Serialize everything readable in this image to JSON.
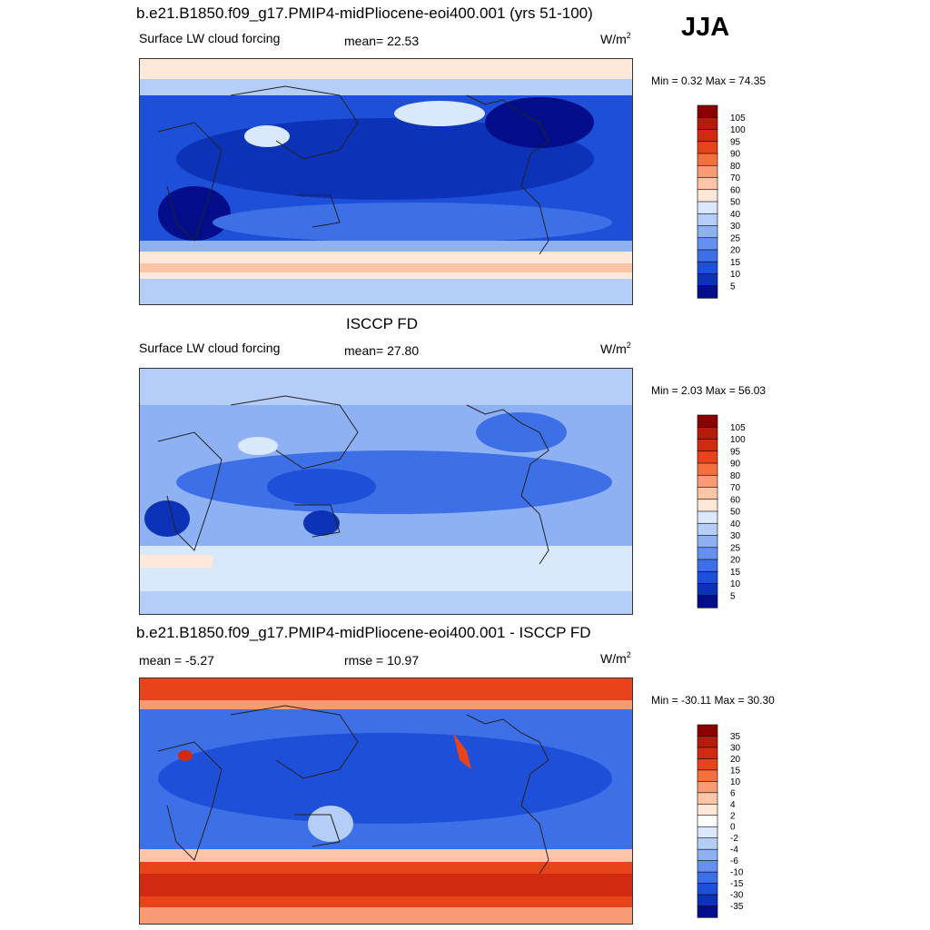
{
  "season": "JJA",
  "panels": [
    {
      "title": "b.e21.B1850.f09_g17.PMIP4-midPliocene-eoi400.001 (yrs 51-100)",
      "left_label": "Surface LW cloud forcing",
      "mid_label": "mean=  22.53",
      "units_base": "W/m",
      "units_exp": "2",
      "minmax": "Min =   0.32 Max =  74.35",
      "colorbar_levels": [
        "105",
        "100",
        "95",
        "90",
        "80",
        "70",
        "60",
        "50",
        "40",
        "30",
        "25",
        "20",
        "15",
        "10",
        "5"
      ],
      "colorbar_colors": [
        "#8b0000",
        "#b31b0b",
        "#d02a10",
        "#e8441c",
        "#f4703e",
        "#f89a73",
        "#fbc5a8",
        "#fde8da",
        "#d9e8fb",
        "#b5cef8",
        "#8eb1f4",
        "#6590ee",
        "#3d6fe6",
        "#1e4fd8",
        "#0c33b7",
        "#040d8a"
      ]
    },
    {
      "title": "ISCCP FD",
      "left_label": "Surface LW cloud forcing",
      "mid_label": "mean=  27.80",
      "units_base": "W/m",
      "units_exp": "2",
      "minmax": "Min =   2.03 Max =  56.03",
      "colorbar_levels": [
        "105",
        "100",
        "95",
        "90",
        "80",
        "70",
        "60",
        "50",
        "40",
        "30",
        "25",
        "20",
        "15",
        "10",
        "5"
      ],
      "colorbar_colors": [
        "#8b0000",
        "#b31b0b",
        "#d02a10",
        "#e8441c",
        "#f4703e",
        "#f89a73",
        "#fbc5a8",
        "#fde8da",
        "#d9e8fb",
        "#b5cef8",
        "#8eb1f4",
        "#6590ee",
        "#3d6fe6",
        "#1e4fd8",
        "#0c33b7",
        "#040d8a"
      ]
    },
    {
      "title": "b.e21.B1850.f09_g17.PMIP4-midPliocene-eoi400.001 - ISCCP FD",
      "left_label": "mean =  -5.27",
      "mid_label": "rmse =  10.97",
      "units_base": "W/m",
      "units_exp": "2",
      "minmax": "Min = -30.11 Max =  30.30",
      "colorbar_levels": [
        "35",
        "30",
        "20",
        "15",
        "10",
        "6",
        "4",
        "2",
        "0",
        "-2",
        "-4",
        "-6",
        "-10",
        "-15",
        "-30",
        "-35"
      ],
      "colorbar_colors": [
        "#8b0000",
        "#b31b0b",
        "#d02a10",
        "#e8441c",
        "#f4703e",
        "#f89a73",
        "#fbc5a8",
        "#fde8da",
        "#ffffff",
        "#d9e8fb",
        "#b5cef8",
        "#8eb1f4",
        "#6590ee",
        "#3d6fe6",
        "#1e4fd8",
        "#0c33b7",
        "#040d8a"
      ]
    }
  ],
  "chart_data": [
    {
      "type": "heatmap",
      "title": "b.e21.B1850.f09_g17.PMIP4-midPliocene-eoi400.001 (yrs 51-100)",
      "variable": "Surface LW cloud forcing",
      "units": "W/m2",
      "mean": 22.53,
      "min": 0.32,
      "max": 74.35,
      "contour_levels": [
        5,
        10,
        15,
        20,
        25,
        30,
        40,
        50,
        60,
        70,
        80,
        90,
        95,
        100,
        105
      ]
    },
    {
      "type": "heatmap",
      "title": "ISCCP FD",
      "variable": "Surface LW cloud forcing",
      "units": "W/m2",
      "mean": 27.8,
      "min": 2.03,
      "max": 56.03,
      "contour_levels": [
        5,
        10,
        15,
        20,
        25,
        30,
        40,
        50,
        60,
        70,
        80,
        90,
        95,
        100,
        105
      ]
    },
    {
      "type": "heatmap",
      "title": "b.e21.B1850.f09_g17.PMIP4-midPliocene-eoi400.001 - ISCCP FD",
      "units": "W/m2",
      "mean": -5.27,
      "rmse": 10.97,
      "min": -30.11,
      "max": 30.3,
      "contour_levels": [
        -35,
        -30,
        -15,
        -10,
        -6,
        -4,
        -2,
        0,
        2,
        4,
        6,
        10,
        15,
        20,
        30,
        35
      ]
    }
  ]
}
